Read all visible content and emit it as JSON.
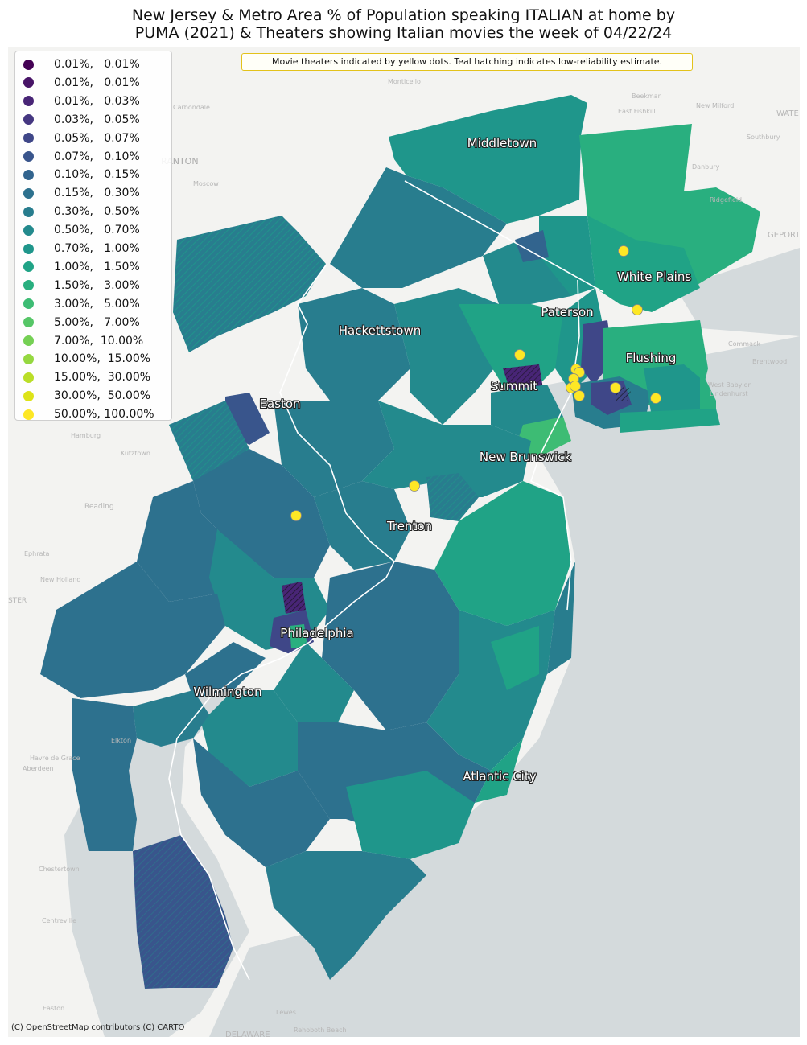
{
  "title": {
    "line1": "New Jersey & Metro Area % of Population speaking ITALIAN at home by",
    "line2": "PUMA (2021) & Theaters showing Italian movies the week of 04/22/24"
  },
  "note": "Movie theaters indicated by yellow dots. Teal hatching indicates low-reliability estimate.",
  "credit": "(C) OpenStreetMap contributors (C) CARTO",
  "legend": [
    {
      "label": "0.01%,   0.01%",
      "color": "#440154"
    },
    {
      "label": "0.01%,   0.01%",
      "color": "#481467"
    },
    {
      "label": "0.01%,   0.03%",
      "color": "#482576"
    },
    {
      "label": "0.03%,   0.05%",
      "color": "#453781"
    },
    {
      "label": "0.05%,   0.07%",
      "color": "#3f4788"
    },
    {
      "label": "0.07%,   0.10%",
      "color": "#39558c"
    },
    {
      "label": "0.10%,   0.15%",
      "color": "#32648e"
    },
    {
      "label": "0.15%,   0.30%",
      "color": "#2d718e"
    },
    {
      "label": "0.30%,   0.50%",
      "color": "#287d8e"
    },
    {
      "label": "0.50%,   0.70%",
      "color": "#238a8d"
    },
    {
      "label": "0.70%,   1.00%",
      "color": "#1f968b"
    },
    {
      "label": "1.00%,   1.50%",
      "color": "#20a386"
    },
    {
      "label": "1.50%,   3.00%",
      "color": "#29af7f"
    },
    {
      "label": "3.00%,   5.00%",
      "color": "#3dbc74"
    },
    {
      "label": "5.00%,   7.00%",
      "color": "#56c667"
    },
    {
      "label": "7.00%,  10.00%",
      "color": "#75d054"
    },
    {
      "label": "10.00%,  15.00%",
      "color": "#95d840"
    },
    {
      "label": "15.00%,  30.00%",
      "color": "#bade28"
    },
    {
      "label": "30.00%,  50.00%",
      "color": "#dde318"
    },
    {
      "label": "50.00%, 100.00%",
      "color": "#fde725"
    }
  ],
  "cities": {
    "middletown": "Middletown",
    "white_plains": "White Plains",
    "paterson": "Paterson",
    "hackettstown": "Hackettstown",
    "flushing": "Flushing",
    "summit": "Summit",
    "easton": "Easton",
    "new_brunswick": "New Brunswick",
    "trenton": "Trenton",
    "philadelphia": "Philadelphia",
    "wilmington": "Wilmington",
    "atlantic_city": "Atlantic City"
  },
  "basemap_labels": {
    "scranton": "RANTON",
    "carbondale": "Carbondale",
    "moscow": "Moscow",
    "hamburg": "Hamburg",
    "kutztown": "Kutztown",
    "reading": "Reading",
    "ephrata": "Ephrata",
    "new_holland": "New Holland",
    "ster": "STER",
    "elkton": "Elkton",
    "havre_de_grace": "Havre de Grace",
    "aberdeen": "Aberdeen",
    "chestertown": "Chestertown",
    "centreville": "Centreville",
    "easton_md": "Easton",
    "lewes": "Lewes",
    "rehoboth": "Rehoboth Beach",
    "delaware": "DELAWARE",
    "danbury": "Danbury",
    "new_milford": "New Milford",
    "bridgeport": "GEPORT",
    "southbury": "Southbury",
    "wate": "WATE",
    "commack": "Commack",
    "brentwood": "Brentwood",
    "west_babylon": "West Babylon",
    "lindenhurst": "Lindenhurst",
    "beekman": "Beekman",
    "east_fishkill": "East Fishkill",
    "monticello": "Monticello",
    "ridgefield": "Ridgefield"
  },
  "colors": {
    "water": "#d4dadc",
    "land": "#f3f3f1",
    "state_line": "#ffffff",
    "theater": "#fde725",
    "note_border": "#e3c21b"
  }
}
